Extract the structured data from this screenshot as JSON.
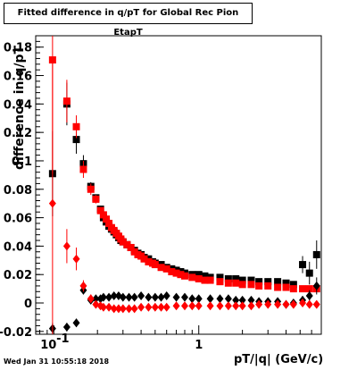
{
  "title": "Fitted difference in q/pT for Global Rec Pion EtapT",
  "ylabel": "difference in q/pT",
  "xlabel": "pT/|q| (GeV/c)",
  "footer": "Wed Jan 31 10:55:18 2018",
  "chart_data": {
    "type": "scatter",
    "x_scale": "log",
    "xlim": [
      0.075,
      7.0
    ],
    "ylim": [
      -0.022,
      0.188
    ],
    "x_tick_labels": [
      "10^-1",
      "1"
    ],
    "x_tick_values": [
      0.1,
      1
    ],
    "y_ticks": [
      -0.02,
      0,
      0.02,
      0.04,
      0.06,
      0.08,
      0.1,
      0.12,
      0.14,
      0.16,
      0.18
    ],
    "y_tick_labels": [
      "-0.02",
      "0",
      "0.02",
      "0.04",
      "0.06",
      "0.08",
      "0.1",
      "0.12",
      "0.14",
      "0.16",
      "0.18"
    ],
    "series": [
      {
        "marker": "square",
        "color": "#000000",
        "points": [
          [
            0.098,
            0.091,
            0.03
          ],
          [
            0.123,
            0.14,
            0.015
          ],
          [
            0.143,
            0.115,
            0.01
          ],
          [
            0.16,
            0.098,
            0.006
          ],
          [
            0.18,
            0.082,
            0.003
          ],
          [
            0.195,
            0.074,
            0.002
          ],
          [
            0.21,
            0.066,
            0.002
          ],
          [
            0.22,
            0.06,
            0.002
          ],
          [
            0.23,
            0.057,
            0.001
          ],
          [
            0.24,
            0.054,
            0.001
          ],
          [
            0.25,
            0.052,
            0.001
          ],
          [
            0.26,
            0.05,
            0.001
          ],
          [
            0.27,
            0.048,
            0.001
          ],
          [
            0.28,
            0.046,
            0.001
          ],
          [
            0.29,
            0.044,
            0.001
          ],
          [
            0.3,
            0.043,
            0.001
          ],
          [
            0.32,
            0.041,
            0.001
          ],
          [
            0.34,
            0.039,
            0.001
          ],
          [
            0.36,
            0.037,
            0.001
          ],
          [
            0.38,
            0.035,
            0.001
          ],
          [
            0.4,
            0.034,
            0.001
          ],
          [
            0.42,
            0.032,
            0.001
          ],
          [
            0.45,
            0.031,
            0.001
          ],
          [
            0.48,
            0.029,
            0.001
          ],
          [
            0.5,
            0.028,
            0.001
          ],
          [
            0.55,
            0.027,
            0.001
          ],
          [
            0.6,
            0.025,
            0.001
          ],
          [
            0.65,
            0.024,
            0.001
          ],
          [
            0.7,
            0.023,
            0.001
          ],
          [
            0.75,
            0.022,
            0.001
          ],
          [
            0.8,
            0.021,
            0.001
          ],
          [
            0.9,
            0.02,
            0.001
          ],
          [
            1.0,
            0.02,
            0.001
          ],
          [
            1.1,
            0.019,
            0.001
          ],
          [
            1.2,
            0.018,
            0.001
          ],
          [
            1.4,
            0.018,
            0.001
          ],
          [
            1.6,
            0.017,
            0.001
          ],
          [
            1.8,
            0.017,
            0.001
          ],
          [
            2.0,
            0.016,
            0.001
          ],
          [
            2.3,
            0.016,
            0.001
          ],
          [
            2.6,
            0.015,
            0.001
          ],
          [
            3.0,
            0.015,
            0.001
          ],
          [
            3.5,
            0.015,
            0.002
          ],
          [
            4.0,
            0.014,
            0.002
          ],
          [
            4.5,
            0.013,
            0.002
          ],
          [
            5.2,
            0.027,
            0.006
          ],
          [
            5.8,
            0.021,
            0.008
          ],
          [
            6.5,
            0.034,
            0.01
          ]
        ]
      },
      {
        "marker": "square",
        "color": "#ff0000",
        "points": [
          [
            0.098,
            0.171,
            0.08
          ],
          [
            0.123,
            0.142,
            0.015
          ],
          [
            0.143,
            0.124,
            0.008
          ],
          [
            0.16,
            0.094,
            0.006
          ],
          [
            0.18,
            0.08,
            0.004
          ],
          [
            0.195,
            0.073,
            0.003
          ],
          [
            0.21,
            0.065,
            0.002
          ],
          [
            0.22,
            0.062,
            0.002
          ],
          [
            0.23,
            0.059,
            0.002
          ],
          [
            0.24,
            0.056,
            0.001
          ],
          [
            0.25,
            0.053,
            0.001
          ],
          [
            0.26,
            0.051,
            0.001
          ],
          [
            0.27,
            0.049,
            0.001
          ],
          [
            0.28,
            0.047,
            0.001
          ],
          [
            0.29,
            0.045,
            0.001
          ],
          [
            0.3,
            0.043,
            0.001
          ],
          [
            0.32,
            0.041,
            0.001
          ],
          [
            0.34,
            0.039,
            0.001
          ],
          [
            0.36,
            0.036,
            0.001
          ],
          [
            0.38,
            0.034,
            0.001
          ],
          [
            0.4,
            0.033,
            0.001
          ],
          [
            0.42,
            0.031,
            0.001
          ],
          [
            0.45,
            0.029,
            0.001
          ],
          [
            0.48,
            0.028,
            0.001
          ],
          [
            0.5,
            0.027,
            0.001
          ],
          [
            0.55,
            0.025,
            0.001
          ],
          [
            0.6,
            0.024,
            0.001
          ],
          [
            0.65,
            0.022,
            0.001
          ],
          [
            0.7,
            0.021,
            0.001
          ],
          [
            0.75,
            0.02,
            0.001
          ],
          [
            0.8,
            0.019,
            0.001
          ],
          [
            0.9,
            0.018,
            0.001
          ],
          [
            1.0,
            0.017,
            0.001
          ],
          [
            1.1,
            0.016,
            0.001
          ],
          [
            1.2,
            0.016,
            0.001
          ],
          [
            1.4,
            0.015,
            0.001
          ],
          [
            1.6,
            0.014,
            0.001
          ],
          [
            1.8,
            0.014,
            0.001
          ],
          [
            2.0,
            0.013,
            0.001
          ],
          [
            2.3,
            0.013,
            0.001
          ],
          [
            2.6,
            0.012,
            0.001
          ],
          [
            3.0,
            0.012,
            0.001
          ],
          [
            3.5,
            0.011,
            0.001
          ],
          [
            4.0,
            0.011,
            0.001
          ],
          [
            4.5,
            0.01,
            0.001
          ],
          [
            5.2,
            0.01,
            0.001
          ],
          [
            5.8,
            0.01,
            0.001
          ],
          [
            6.5,
            0.01,
            0.001
          ]
        ]
      },
      {
        "marker": "diamond",
        "color": "#000000",
        "points": [
          [
            0.098,
            -0.018,
            0.004
          ],
          [
            0.123,
            -0.017,
            0.003
          ],
          [
            0.143,
            -0.014,
            0.003
          ],
          [
            0.16,
            0.009,
            0.003
          ],
          [
            0.18,
            0.002,
            0.002
          ],
          [
            0.195,
            0.003,
            0.002
          ],
          [
            0.21,
            0.003,
            0.001
          ],
          [
            0.22,
            0.004,
            0.001
          ],
          [
            0.24,
            0.004,
            0.001
          ],
          [
            0.26,
            0.005,
            0.001
          ],
          [
            0.28,
            0.005,
            0.001
          ],
          [
            0.3,
            0.004,
            0.001
          ],
          [
            0.33,
            0.004,
            0.001
          ],
          [
            0.36,
            0.004,
            0.001
          ],
          [
            0.4,
            0.005,
            0.001
          ],
          [
            0.45,
            0.004,
            0.001
          ],
          [
            0.5,
            0.004,
            0.001
          ],
          [
            0.55,
            0.004,
            0.001
          ],
          [
            0.6,
            0.005,
            0.001
          ],
          [
            0.7,
            0.004,
            0.001
          ],
          [
            0.8,
            0.004,
            0.001
          ],
          [
            0.9,
            0.003,
            0.001
          ],
          [
            1.0,
            0.003,
            0.001
          ],
          [
            1.2,
            0.003,
            0.001
          ],
          [
            1.4,
            0.003,
            0.001
          ],
          [
            1.6,
            0.003,
            0.001
          ],
          [
            1.8,
            0.002,
            0.001
          ],
          [
            2.0,
            0.002,
            0.001
          ],
          [
            2.3,
            0.002,
            0.001
          ],
          [
            2.6,
            0.001,
            0.001
          ],
          [
            3.0,
            0.001,
            0.001
          ],
          [
            3.5,
            0.001,
            0.001
          ],
          [
            4.0,
            -0.001,
            0.002
          ],
          [
            4.5,
            0.0,
            0.002
          ],
          [
            5.2,
            0.002,
            0.003
          ],
          [
            5.8,
            0.005,
            0.004
          ],
          [
            6.5,
            0.012,
            0.006
          ]
        ]
      },
      {
        "marker": "diamond",
        "color": "#ff0000",
        "points": [
          [
            0.098,
            0.07,
            0.1
          ],
          [
            0.123,
            0.04,
            0.012
          ],
          [
            0.143,
            0.031,
            0.008
          ],
          [
            0.16,
            0.012,
            0.004
          ],
          [
            0.18,
            0.003,
            0.003
          ],
          [
            0.195,
            -0.001,
            0.002
          ],
          [
            0.21,
            -0.002,
            0.002
          ],
          [
            0.22,
            -0.003,
            0.001
          ],
          [
            0.24,
            -0.003,
            0.001
          ],
          [
            0.26,
            -0.004,
            0.001
          ],
          [
            0.28,
            -0.004,
            0.001
          ],
          [
            0.3,
            -0.004,
            0.001
          ],
          [
            0.33,
            -0.004,
            0.001
          ],
          [
            0.36,
            -0.004,
            0.001
          ],
          [
            0.4,
            -0.003,
            0.001
          ],
          [
            0.45,
            -0.003,
            0.001
          ],
          [
            0.5,
            -0.003,
            0.001
          ],
          [
            0.55,
            -0.003,
            0.001
          ],
          [
            0.6,
            -0.003,
            0.001
          ],
          [
            0.7,
            -0.002,
            0.001
          ],
          [
            0.8,
            -0.002,
            0.001
          ],
          [
            0.9,
            -0.002,
            0.001
          ],
          [
            1.0,
            -0.002,
            0.001
          ],
          [
            1.2,
            -0.002,
            0.001
          ],
          [
            1.4,
            -0.002,
            0.001
          ],
          [
            1.6,
            -0.002,
            0.001
          ],
          [
            1.8,
            -0.002,
            0.001
          ],
          [
            2.0,
            -0.002,
            0.001
          ],
          [
            2.3,
            -0.002,
            0.001
          ],
          [
            2.6,
            -0.001,
            0.001
          ],
          [
            3.0,
            -0.001,
            0.001
          ],
          [
            3.5,
            -0.001,
            0.001
          ],
          [
            4.0,
            -0.001,
            0.001
          ],
          [
            4.5,
            -0.001,
            0.001
          ],
          [
            5.2,
            0.0,
            0.001
          ],
          [
            5.8,
            -0.001,
            0.001
          ],
          [
            6.5,
            -0.001,
            0.001
          ]
        ]
      }
    ]
  }
}
